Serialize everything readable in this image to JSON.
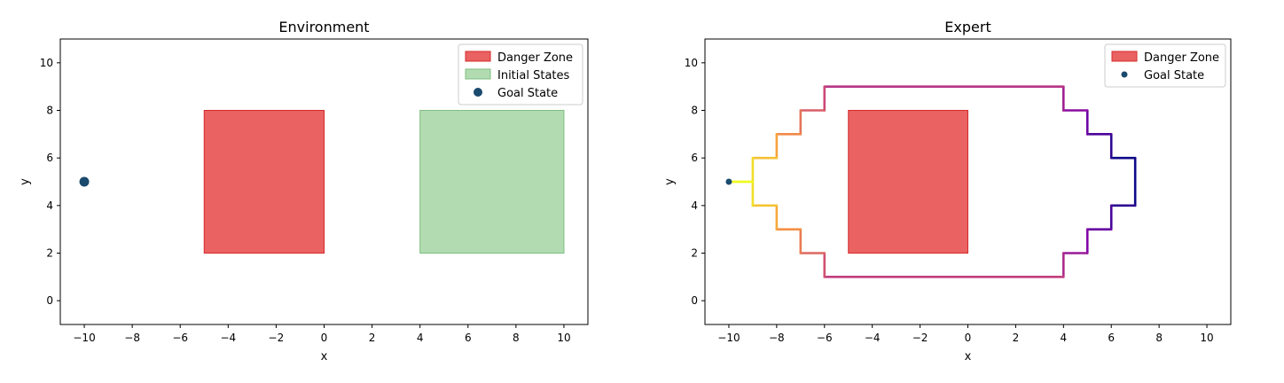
{
  "chart_data": [
    {
      "type": "scatter",
      "title": "Environment",
      "xlabel": "x",
      "ylabel": "y",
      "xlim": [
        -11,
        11
      ],
      "ylim": [
        -1,
        11
      ],
      "xticks": [
        -10,
        -8,
        -6,
        -4,
        -2,
        0,
        2,
        4,
        6,
        8,
        10
      ],
      "yticks": [
        0,
        2,
        4,
        6,
        8,
        10
      ],
      "legend_position": "top-right",
      "regions": [
        {
          "name": "Danger Zone",
          "x": [
            -5,
            0
          ],
          "y": [
            2,
            8
          ],
          "color": "#e74c4c"
        },
        {
          "name": "Initial States",
          "x": [
            4,
            10
          ],
          "y": [
            2,
            8
          ],
          "color": "#98cf98"
        }
      ],
      "points": [
        {
          "name": "Goal State",
          "x": -10,
          "y": 5,
          "color": "#1a4a6e"
        }
      ],
      "legend": [
        "Danger Zone",
        "Initial States",
        "Goal State"
      ]
    },
    {
      "type": "line",
      "title": "Expert",
      "xlabel": "x",
      "ylabel": "y",
      "xlim": [
        -11,
        11
      ],
      "ylim": [
        -1,
        11
      ],
      "xticks": [
        -10,
        -8,
        -6,
        -4,
        -2,
        0,
        2,
        4,
        6,
        8,
        10
      ],
      "yticks": [
        0,
        2,
        4,
        6,
        8,
        10
      ],
      "legend_position": "top-right",
      "regions": [
        {
          "name": "Danger Zone",
          "x": [
            -5,
            0
          ],
          "y": [
            2,
            8
          ],
          "color": "#e74c4c"
        }
      ],
      "points": [
        {
          "name": "Goal State",
          "x": -10,
          "y": 5,
          "color": "#1a4a6e"
        }
      ],
      "trajectories": [
        {
          "color_map": "plasma",
          "points": [
            [
              7,
              6
            ],
            [
              7,
              4
            ],
            [
              6,
              4
            ],
            [
              6,
              3
            ],
            [
              5,
              3
            ],
            [
              5,
              2
            ],
            [
              4,
              2
            ],
            [
              4,
              1
            ],
            [
              -6,
              1
            ],
            [
              -6,
              2
            ],
            [
              -7,
              2
            ],
            [
              -7,
              3
            ],
            [
              -8,
              3
            ],
            [
              -8,
              4
            ],
            [
              -9,
              4
            ],
            [
              -9,
              5
            ],
            [
              -10,
              5
            ]
          ]
        },
        {
          "color_map": "plasma",
          "points": [
            [
              7,
              6
            ],
            [
              6,
              6
            ],
            [
              6,
              7
            ],
            [
              5,
              7
            ],
            [
              5,
              8
            ],
            [
              4,
              8
            ],
            [
              4,
              9
            ],
            [
              -6,
              9
            ],
            [
              -6,
              8
            ],
            [
              -7,
              8
            ],
            [
              -7,
              7
            ],
            [
              -8,
              7
            ],
            [
              -8,
              6
            ],
            [
              -9,
              6
            ],
            [
              -9,
              5
            ],
            [
              -10,
              5
            ]
          ]
        }
      ],
      "legend": [
        "Danger Zone",
        "Goal State"
      ]
    }
  ]
}
